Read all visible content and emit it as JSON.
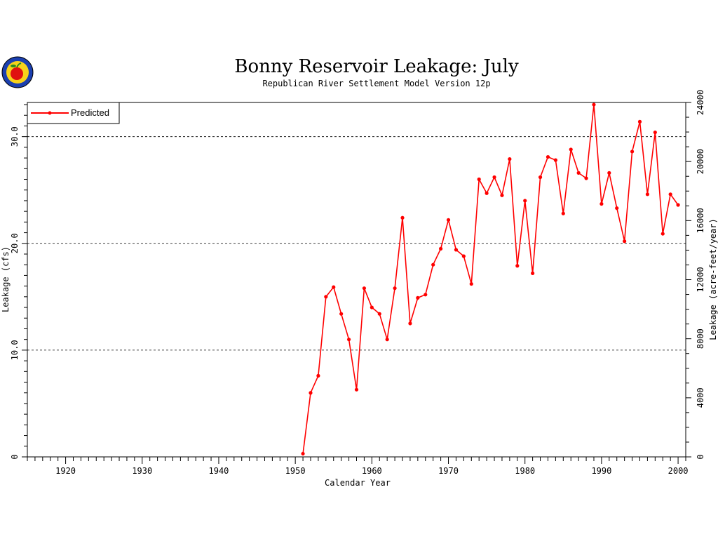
{
  "colors": {
    "series": "#ff0000",
    "axis": "#000000",
    "grid": "#000000",
    "background": "#ffffff"
  },
  "logo": {
    "icon": "apple-logo-icon"
  },
  "chart_data": {
    "type": "line",
    "title": "Bonny Reservoir Leakage: July",
    "subtitle": "Republican River Settlement Model Version 12p",
    "xlabel": "Calendar Year",
    "ylabel": "Leakage (cfs)",
    "y2label": "Leakage (acre-feet/year)",
    "xlim": [
      1915,
      2001
    ],
    "ylim": [
      0,
      33.2
    ],
    "y2lim": [
      0,
      24000
    ],
    "x_ticks": [
      1920,
      1930,
      1940,
      1950,
      1960,
      1970,
      1980,
      1990,
      2000
    ],
    "x_tick_labels": [
      "1920",
      "1930",
      "1940",
      "1950",
      "1960",
      "1970",
      "1980",
      "1990",
      "2000"
    ],
    "y_ticks": [
      0,
      10,
      20,
      30
    ],
    "y_tick_labels": [
      "0",
      "10.0",
      "20.0",
      "30.0"
    ],
    "y2_ticks": [
      0,
      4000,
      8000,
      12000,
      16000,
      20000,
      24000
    ],
    "y2_tick_labels": [
      "0",
      "4000",
      "8000",
      "12000",
      "16000",
      "20000",
      "24000"
    ],
    "grid": "horizontal dashed at 10, 20, 30",
    "legend_position": "top-left",
    "series": [
      {
        "name": "Predicted",
        "x": [
          1951,
          1952,
          1953,
          1954,
          1955,
          1956,
          1957,
          1958,
          1959,
          1960,
          1961,
          1962,
          1963,
          1964,
          1965,
          1966,
          1967,
          1968,
          1969,
          1970,
          1971,
          1972,
          1973,
          1974,
          1975,
          1976,
          1977,
          1978,
          1979,
          1980,
          1981,
          1982,
          1983,
          1984,
          1985,
          1986,
          1987,
          1988,
          1989,
          1990,
          1991,
          1992,
          1993,
          1994,
          1995,
          1996,
          1997,
          1998,
          1999,
          2000
        ],
        "values": [
          0.3,
          6.0,
          7.6,
          15.0,
          15.9,
          13.4,
          11.0,
          6.3,
          15.8,
          14.0,
          13.4,
          11.0,
          15.8,
          22.4,
          12.5,
          14.9,
          15.2,
          18.0,
          19.5,
          22.2,
          19.4,
          18.8,
          16.2,
          26.0,
          24.7,
          26.2,
          24.5,
          27.9,
          17.9,
          24.0,
          17.2,
          26.2,
          28.1,
          27.8,
          22.8,
          28.8,
          26.6,
          26.1,
          33.0,
          23.7,
          26.6,
          23.3,
          20.2,
          28.6,
          31.4,
          24.6,
          30.4,
          20.9,
          24.6,
          23.6
        ]
      }
    ]
  }
}
